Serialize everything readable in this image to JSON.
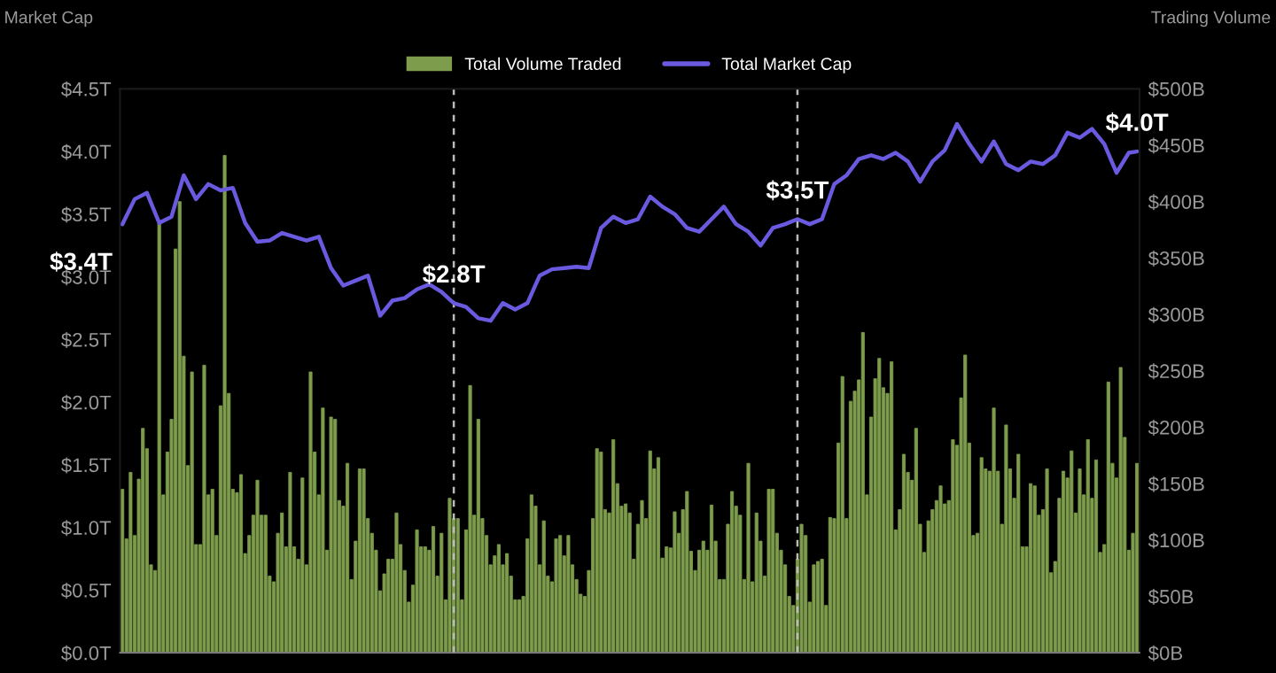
{
  "chart_data": {
    "type": "bar",
    "ylabel": "Market Cap",
    "y2label": "Trading Volume",
    "categories": [
      null,
      null,
      null,
      null,
      null,
      null,
      null,
      null,
      null,
      null,
      null,
      null,
      null,
      null,
      null,
      null,
      null,
      null,
      null,
      null,
      null,
      null,
      null,
      null,
      null,
      null,
      null,
      null,
      null,
      null,
      null,
      null,
      null,
      null,
      null,
      null,
      null,
      null,
      null,
      null,
      null,
      null,
      null,
      null,
      null,
      null,
      null,
      null,
      null,
      null,
      null,
      null,
      null,
      null,
      null,
      null,
      null,
      null,
      null,
      null,
      null,
      null,
      null,
      null,
      null,
      null,
      null,
      null,
      null,
      null,
      null,
      null,
      null,
      null,
      null,
      null,
      null,
      null,
      null,
      null,
      null,
      null,
      null,
      null,
      null,
      null,
      null,
      null,
      null,
      null,
      null,
      null,
      null,
      null,
      null,
      null,
      null,
      null,
      null,
      null,
      null,
      null,
      null,
      null,
      null,
      null,
      null,
      null,
      null,
      null,
      null,
      null,
      null,
      null,
      null,
      null,
      null,
      null,
      null,
      null,
      null,
      null,
      null,
      null,
      null,
      null,
      null,
      null,
      null,
      null,
      null,
      null,
      null,
      null,
      null,
      null,
      null,
      null,
      null,
      null,
      null,
      null,
      null,
      null,
      null,
      null,
      null,
      null,
      null,
      null,
      null,
      null,
      null,
      null,
      null,
      null,
      null,
      null,
      null,
      null,
      null,
      null,
      null,
      null,
      null,
      null,
      null,
      null,
      null,
      null,
      null,
      null,
      null,
      null,
      null,
      null,
      null,
      null,
      null,
      null,
      null,
      null,
      null,
      null,
      null,
      null,
      null,
      null,
      null,
      null,
      null,
      null,
      null,
      null,
      null,
      null,
      null,
      null,
      null,
      null,
      null,
      null,
      null,
      null,
      null,
      null,
      null,
      null,
      null,
      null,
      null,
      null,
      null,
      null,
      null,
      null,
      null,
      null,
      null,
      null,
      null,
      null,
      null,
      null,
      null,
      null,
      null,
      null,
      null,
      null,
      null,
      null,
      null,
      null,
      null,
      null,
      null,
      null,
      null,
      null,
      null,
      null,
      null,
      null,
      null,
      null,
      null,
      null,
      null
    ],
    "tick_labels": "y",
    "ylim": [
      0,
      4.5
    ],
    "yticks": [
      {
        "value": 0,
        "label": "$0.0T"
      },
      {
        "value": 0.5,
        "label": "$0.5T"
      },
      {
        "value": 1,
        "label": "$1.0T"
      },
      {
        "value": 1.5,
        "label": "$1.5T"
      },
      {
        "value": 2,
        "label": "$2.0T"
      },
      {
        "value": 2.5,
        "label": "$2.5T"
      },
      {
        "value": 3,
        "label": "$3.0T"
      },
      {
        "value": 3.5,
        "label": "$3.5T"
      },
      {
        "value": 4,
        "label": "$4.0T"
      },
      {
        "value": 4.5,
        "label": "$4.5T"
      }
    ],
    "y2lim": [
      0,
      500
    ],
    "y2ticks": [
      {
        "value": 0,
        "label": "$0B"
      },
      {
        "value": 50,
        "label": "$50B"
      },
      {
        "value": 100,
        "label": "$100B"
      },
      {
        "value": 150,
        "label": "$150B"
      },
      {
        "value": 200,
        "label": "$200B"
      },
      {
        "value": 250,
        "label": "$250B"
      },
      {
        "value": 300,
        "label": "$300B"
      },
      {
        "value": 350,
        "label": "$350B"
      },
      {
        "value": 400,
        "label": "$400B"
      },
      {
        "value": 450,
        "label": "$450B"
      },
      {
        "value": 500,
        "label": "$500B"
      }
    ],
    "legend": "top",
    "series": [
      {
        "name": "Total Volume Traded",
        "axis": "y2",
        "color": "#7d9c4c",
        "values": [
          145,
          101,
          160,
          104,
          154,
          199,
          181,
          78,
          73,
          381,
          140,
          178,
          207,
          358,
          400,
          263,
          166,
          249,
          96,
          96,
          255,
          140,
          145,
          104,
          219,
          441,
          230,
          145,
          142,
          158,
          88,
          104,
          122,
          153,
          122,
          122,
          68,
          63,
          106,
          124,
          94,
          160,
          94,
          83,
          155,
          78,
          249,
          178,
          140,
          217,
          91,
          209,
          207,
          135,
          130,
          168,
          65,
          99,
          163,
          163,
          119,
          106,
          91,
          55,
          70,
          83,
          83,
          124,
          96,
          73,
          45,
          60,
          109,
          94,
          94,
          91,
          112,
          68,
          106,
          47,
          137,
          119,
          119,
          47,
          109,
          237,
          122,
          207,
          119,
          104,
          78,
          86,
          96,
          78,
          88,
          68,
          47,
          47,
          50,
          101,
          140,
          130,
          78,
          117,
          68,
          63,
          101,
          104,
          86,
          104,
          78,
          65,
          52,
          50,
          73,
          119,
          181,
          178,
          127,
          124,
          189,
          150,
          130,
          132,
          124,
          83,
          114,
          135,
          119,
          179,
          163,
          173,
          84,
          94,
          93,
          125,
          106,
          127,
          143,
          90,
          73,
          91,
          99,
          91,
          131,
          99,
          65,
          65,
          114,
          143,
          130,
          122,
          65,
          168,
          63,
          124,
          99,
          68,
          145,
          145,
          106,
          91,
          78,
          50,
          42,
          83,
          114,
          104,
          45,
          78,
          81,
          83,
          42,
          120,
          119,
          186,
          245,
          119,
          223,
          232,
          242,
          284,
          140,
          209,
          243,
          261,
          235,
          230,
          258,
          109,
          127,
          176,
          160,
          153,
          199,
          114,
          89,
          117,
          127,
          135,
          148,
          132,
          135,
          189,
          184,
          226,
          264,
          186,
          104,
          106,
          173,
          163,
          161,
          217,
          161,
          114,
          202,
          163,
          137,
          176,
          94,
          94,
          150,
          148,
          122,
          127,
          163,
          71,
          81,
          137,
          161,
          155,
          179,
          124,
          163,
          140,
          189,
          137,
          171,
          89,
          96,
          240,
          168,
          155,
          253,
          191,
          91,
          106,
          168
        ]
      },
      {
        "name": "Total Market Cap",
        "type": "line",
        "axis": "y",
        "color": "#6a5ae0",
        "values": [
          3.42,
          null,
          null,
          3.62,
          null,
          null,
          3.67,
          null,
          null,
          3.43,
          null,
          null,
          3.48,
          null,
          null,
          3.81,
          null,
          null,
          3.62,
          null,
          null,
          3.74,
          null,
          null,
          3.69,
          null,
          null,
          3.71,
          null,
          null,
          3.43,
          null,
          null,
          3.28,
          null,
          null,
          3.29,
          null,
          null,
          3.35,
          null,
          null,
          3.32,
          null,
          null,
          3.29,
          null,
          null,
          3.32,
          null,
          null,
          3.07,
          null,
          null,
          2.93,
          null,
          null,
          2.97,
          null,
          null,
          3.01,
          null,
          null,
          2.69,
          null,
          null,
          2.81,
          null,
          null,
          2.83,
          null,
          null,
          2.9,
          null,
          null,
          2.94,
          null,
          null,
          2.88,
          null,
          null,
          2.79,
          null,
          null,
          2.76,
          null,
          null,
          2.67,
          null,
          null,
          2.65,
          null,
          null,
          2.79,
          null,
          null,
          2.74,
          null,
          null,
          2.79,
          null,
          null,
          3.01,
          null,
          null,
          3.06,
          null,
          null,
          3.07,
          null,
          null,
          3.08,
          null,
          null,
          3.07,
          null,
          null,
          3.39,
          null,
          null,
          3.48,
          null,
          null,
          3.43,
          null,
          null,
          3.46,
          null,
          null,
          3.64,
          null,
          null,
          3.56,
          null,
          null,
          3.5,
          null,
          null,
          3.39,
          null,
          null,
          3.36,
          null,
          null,
          3.46,
          null,
          null,
          3.56,
          null,
          null,
          3.42,
          null,
          null,
          3.36,
          null,
          null,
          3.25,
          null,
          null,
          3.39,
          null,
          null,
          3.42,
          null,
          null,
          3.46,
          null,
          null,
          3.42,
          null,
          null,
          3.46,
          null,
          null,
          3.74,
          null,
          null,
          3.81,
          null,
          null,
          3.94,
          null,
          null,
          3.97,
          null,
          null,
          3.94,
          null,
          null,
          3.99,
          null,
          null,
          3.92,
          null,
          null,
          3.76,
          null,
          null,
          3.92,
          null,
          null,
          4.01,
          null,
          null,
          4.22,
          null,
          null,
          4.06,
          null,
          null,
          3.92,
          null,
          null,
          4.08,
          null,
          null,
          3.9,
          null,
          null,
          3.85,
          null,
          null,
          3.92,
          null,
          null,
          3.9,
          null,
          null,
          3.97,
          null,
          null,
          4.15,
          null,
          null,
          4.11,
          null,
          null,
          4.18,
          null,
          null,
          4.06,
          null,
          null,
          3.83,
          null,
          null,
          3.99,
          null,
          4.0
        ],
        "value_labels": [
          "$3.4T",
          null,
          null,
          null,
          null,
          null,
          null,
          null,
          null,
          null,
          null,
          null,
          null,
          null,
          null,
          null,
          null,
          null,
          null,
          null,
          null,
          null,
          null,
          null,
          null,
          null,
          null,
          null,
          null,
          null,
          null,
          null,
          null,
          null,
          null,
          null,
          null,
          null,
          null,
          null,
          null,
          null,
          null,
          null,
          null,
          null,
          null,
          null,
          null,
          null,
          null,
          null,
          null,
          null,
          null,
          null,
          null,
          null,
          null,
          null,
          null,
          null,
          null,
          null,
          null,
          null,
          null,
          null,
          null,
          null,
          null,
          null,
          null,
          null,
          null,
          null,
          null,
          null,
          null,
          null,
          null,
          "$2.8T",
          null,
          null,
          null,
          null,
          null,
          null,
          null,
          null,
          null,
          null,
          null,
          null,
          null,
          null,
          null,
          null,
          null,
          null,
          null,
          null,
          null,
          null,
          null,
          null,
          null,
          null,
          null,
          null,
          null,
          null,
          null,
          null,
          null,
          null,
          null,
          null,
          null,
          null,
          null,
          null,
          null,
          null,
          null,
          null,
          null,
          null,
          null,
          null,
          null,
          null,
          null,
          null,
          null,
          null,
          null,
          null,
          null,
          null,
          null,
          null,
          null,
          null,
          null,
          null,
          null,
          null,
          null,
          null,
          null,
          null,
          null,
          null,
          null,
          null,
          null,
          null,
          null,
          null,
          null,
          null,
          null,
          null,
          null,
          "$3.5T",
          null,
          null,
          null,
          null,
          null,
          null,
          null,
          null,
          null,
          null,
          null,
          null,
          null,
          null,
          null,
          null,
          null,
          null,
          null,
          null,
          null,
          null,
          null,
          null,
          null,
          null,
          null,
          null,
          null,
          null,
          null,
          null,
          null,
          null,
          null,
          null,
          null,
          null,
          null,
          null,
          null,
          null,
          null,
          null,
          null,
          null,
          null,
          null,
          null,
          null,
          null,
          null,
          null,
          null,
          null,
          null,
          null,
          null,
          null,
          null,
          null,
          null,
          null,
          null,
          null,
          null,
          null,
          null,
          null,
          null,
          null,
          null,
          null,
          null,
          null,
          null,
          null,
          null,
          null,
          null,
          null,
          null,
          "$4.0T"
        ]
      }
    ]
  }
}
